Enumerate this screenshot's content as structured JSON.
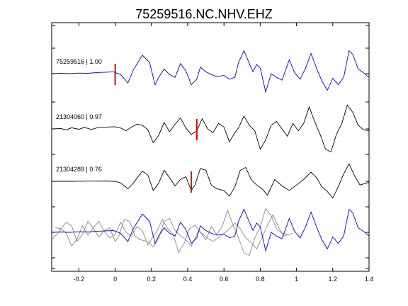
{
  "chart_data": {
    "type": "line",
    "title": "75259516.NC.NHV.EHZ",
    "xlabel": "",
    "ylabel": "",
    "xlim": [
      -0.35,
      1.4
    ],
    "x_ticks": [
      -0.2,
      0,
      0.2,
      0.4,
      0.6,
      0.8,
      1,
      1.2,
      1.4
    ],
    "x_tick_labels": [
      "-0.2",
      "0",
      "0.2",
      "0.4",
      "0.6",
      "0.8",
      "1",
      "1.2",
      "1.4"
    ],
    "grid": false,
    "colors": {
      "reference": "#0000cc",
      "match": "#000000",
      "overlay_match": "#888888",
      "pick": "#dd0000"
    },
    "traces": [
      {
        "label": "75259516 | 1.00",
        "color": "#0000cc",
        "pick_x": 0.0,
        "points": [
          [
            -0.35,
            0.0
          ],
          [
            -0.3,
            0.02
          ],
          [
            -0.25,
            0.0
          ],
          [
            -0.2,
            0.03
          ],
          [
            -0.15,
            0.02
          ],
          [
            -0.1,
            0.06
          ],
          [
            -0.05,
            0.08
          ],
          [
            -0.01,
            0.1
          ],
          [
            0.03,
            -0.05
          ],
          [
            0.07,
            -0.5
          ],
          [
            0.1,
            0.2
          ],
          [
            0.15,
            1.0
          ],
          [
            0.19,
            0.6
          ],
          [
            0.22,
            -0.6
          ],
          [
            0.24,
            -0.2
          ],
          [
            0.27,
            0.25
          ],
          [
            0.3,
            -0.05
          ],
          [
            0.33,
            -0.2
          ],
          [
            0.36,
            0.55
          ],
          [
            0.39,
            0.15
          ],
          [
            0.42,
            -0.6
          ],
          [
            0.45,
            -0.3
          ],
          [
            0.47,
            0.35
          ],
          [
            0.5,
            0.1
          ],
          [
            0.53,
            -0.05
          ],
          [
            0.56,
            -0.15
          ],
          [
            0.6,
            -0.1
          ],
          [
            0.63,
            -0.3
          ],
          [
            0.66,
            -0.2
          ],
          [
            0.68,
            0.6
          ],
          [
            0.71,
            1.25
          ],
          [
            0.74,
            0.55
          ],
          [
            0.76,
            0.1
          ],
          [
            0.78,
            0.5
          ],
          [
            0.8,
            0.3
          ],
          [
            0.83,
            -1.0
          ],
          [
            0.86,
            0.0
          ],
          [
            0.89,
            -0.2
          ],
          [
            0.92,
            -0.35
          ],
          [
            0.96,
            0.75
          ],
          [
            0.99,
            0.05
          ],
          [
            1.02,
            -0.3
          ],
          [
            1.05,
            0.3
          ],
          [
            1.08,
            1.1
          ],
          [
            1.11,
            0.3
          ],
          [
            1.14,
            -0.4
          ],
          [
            1.17,
            -0.9
          ],
          [
            1.2,
            -0.25
          ],
          [
            1.23,
            -0.6
          ],
          [
            1.26,
            -0.2
          ],
          [
            1.29,
            1.25
          ],
          [
            1.31,
            1.05
          ],
          [
            1.34,
            0.25
          ],
          [
            1.37,
            0.05
          ],
          [
            1.4,
            -0.2
          ]
        ]
      },
      {
        "label": "21304060 | 0.97",
        "color": "#000000",
        "pick_x": 0.45,
        "points": [
          [
            -0.35,
            0.0
          ],
          [
            -0.3,
            0.02
          ],
          [
            -0.27,
            -0.05
          ],
          [
            -0.24,
            0.06
          ],
          [
            -0.2,
            -0.02
          ],
          [
            -0.17,
            0.08
          ],
          [
            -0.13,
            -0.03
          ],
          [
            -0.1,
            0.06
          ],
          [
            -0.05,
            0.1
          ],
          [
            0.0,
            0.12
          ],
          [
            0.03,
            0.05
          ],
          [
            0.06,
            -0.1
          ],
          [
            0.09,
            0.1
          ],
          [
            0.12,
            0.25
          ],
          [
            0.15,
            0.2
          ],
          [
            0.18,
            -0.05
          ],
          [
            0.21,
            -0.75
          ],
          [
            0.24,
            -0.35
          ],
          [
            0.27,
            0.35
          ],
          [
            0.3,
            -0.15
          ],
          [
            0.33,
            0.25
          ],
          [
            0.36,
            0.6
          ],
          [
            0.39,
            0.05
          ],
          [
            0.42,
            -0.3
          ],
          [
            0.45,
            -0.1
          ],
          [
            0.48,
            0.55
          ],
          [
            0.51,
            0.0
          ],
          [
            0.54,
            -0.2
          ],
          [
            0.57,
            0.3
          ],
          [
            0.6,
            0.1
          ],
          [
            0.63,
            -0.7
          ],
          [
            0.66,
            -0.2
          ],
          [
            0.68,
            0.05
          ],
          [
            0.71,
            0.7
          ],
          [
            0.74,
            0.2
          ],
          [
            0.77,
            -0.1
          ],
          [
            0.8,
            -1.1
          ],
          [
            0.83,
            -0.6
          ],
          [
            0.86,
            0.2
          ],
          [
            0.89,
            0.4
          ],
          [
            0.92,
            0.0
          ],
          [
            0.95,
            -0.4
          ],
          [
            0.98,
            0.3
          ],
          [
            1.01,
            -0.1
          ],
          [
            1.04,
            0.3
          ],
          [
            1.07,
            1.2
          ],
          [
            1.1,
            0.4
          ],
          [
            1.13,
            -0.3
          ],
          [
            1.16,
            -1.1
          ],
          [
            1.19,
            -1.25
          ],
          [
            1.22,
            -0.3
          ],
          [
            1.25,
            0.3
          ],
          [
            1.28,
            1.3
          ],
          [
            1.31,
            0.9
          ],
          [
            1.34,
            0.2
          ],
          [
            1.37,
            -0.05
          ],
          [
            1.4,
            -0.1
          ]
        ]
      },
      {
        "label": "21304289 | 0.76",
        "color": "#000000",
        "pick_x": 0.42,
        "points": [
          [
            -0.35,
            0.0
          ],
          [
            -0.25,
            0.0
          ],
          [
            -0.15,
            0.01
          ],
          [
            -0.05,
            0.02
          ],
          [
            0.0,
            0.0
          ],
          [
            0.03,
            -0.08
          ],
          [
            0.07,
            -0.4
          ],
          [
            0.1,
            -0.1
          ],
          [
            0.13,
            0.3
          ],
          [
            0.15,
            0.55
          ],
          [
            0.18,
            0.35
          ],
          [
            0.21,
            -0.5
          ],
          [
            0.24,
            -0.1
          ],
          [
            0.27,
            0.6
          ],
          [
            0.3,
            0.2
          ],
          [
            0.33,
            -0.25
          ],
          [
            0.36,
            0.1
          ],
          [
            0.39,
            0.25
          ],
          [
            0.42,
            -0.5
          ],
          [
            0.44,
            -0.2
          ],
          [
            0.47,
            0.7
          ],
          [
            0.5,
            0.6
          ],
          [
            0.53,
            -0.2
          ],
          [
            0.56,
            -0.4
          ],
          [
            0.6,
            -0.5
          ],
          [
            0.63,
            -0.8
          ],
          [
            0.66,
            -0.3
          ],
          [
            0.69,
            0.6
          ],
          [
            0.72,
            0.75
          ],
          [
            0.75,
            0.1
          ],
          [
            0.78,
            -0.2
          ],
          [
            0.81,
            -0.4
          ],
          [
            0.84,
            -0.75
          ],
          [
            0.88,
            0.1
          ],
          [
            0.92,
            -0.25
          ],
          [
            0.96,
            -0.5
          ],
          [
            1.0,
            -0.2
          ],
          [
            1.04,
            0.1
          ],
          [
            1.08,
            0.5
          ],
          [
            1.11,
            0.2
          ],
          [
            1.14,
            -0.3
          ],
          [
            1.17,
            -0.55
          ],
          [
            1.2,
            -0.9
          ],
          [
            1.23,
            -0.3
          ],
          [
            1.26,
            0.4
          ],
          [
            1.29,
            0.95
          ],
          [
            1.32,
            0.3
          ],
          [
            1.35,
            -0.2
          ],
          [
            1.4,
            -0.05
          ]
        ]
      }
    ],
    "overlay": {
      "series": [
        {
          "name": "",
          "color": "#888888",
          "source_trace": 1,
          "shift": -0.45
        },
        {
          "name": "",
          "color": "#888888",
          "source_trace": 2,
          "shift": -0.42
        },
        {
          "name": "",
          "color": "#0000cc",
          "source_trace": 0,
          "shift": 0.0
        }
      ]
    }
  }
}
